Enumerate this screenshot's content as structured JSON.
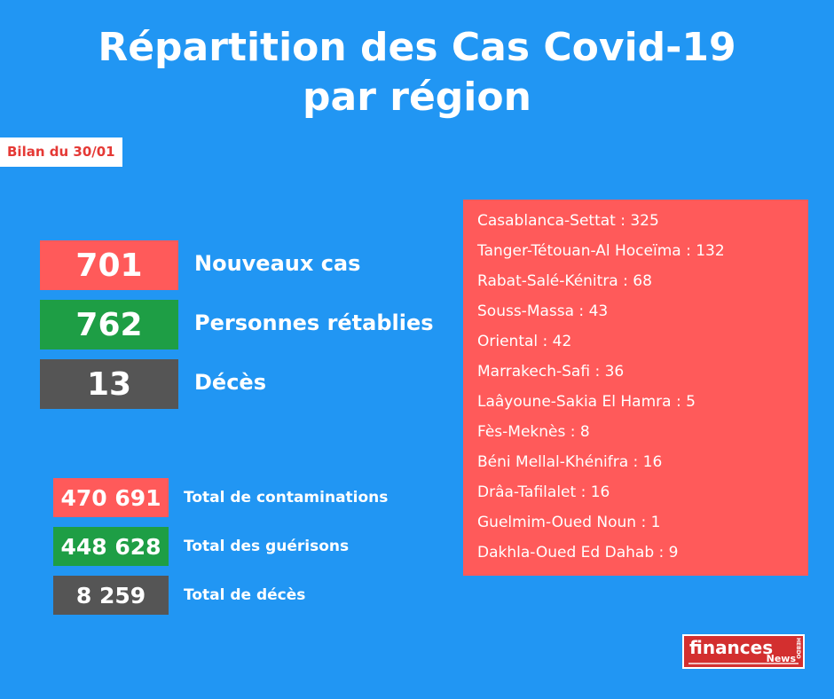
{
  "title_line1": "Répartition des Cas Covid-19",
  "title_line2": "par région",
  "date_label": "Bilan du 30/01",
  "daily": [
    {
      "value": "701",
      "label": "Nouveaux cas",
      "color": "#ff5a5a"
    },
    {
      "value": "762",
      "label": "Personnes rétablies",
      "color": "#1e9e45"
    },
    {
      "value": "13",
      "label": "Décès",
      "color": "#555555"
    }
  ],
  "totals": [
    {
      "value": "470 691",
      "label": "Total de contaminations",
      "color": "#ff5a5a"
    },
    {
      "value": "448 628",
      "label": "Total des guérisons",
      "color": "#1e9e45"
    },
    {
      "value": "8 259",
      "label": "Total de décès",
      "color": "#555555"
    }
  ],
  "regions": [
    "Casablanca-Settat : 325",
    "Tanger-Tétouan-Al Hoceïma : 132",
    "Rabat-Salé-Kénitra : 68",
    "Souss-Massa : 43",
    "Oriental : 42",
    "Marrakech-Safi : 36",
    "Laâyoune-Sakia El Hamra : 5",
    "Fès-Meknès : 8",
    "Béni Mellal-Khénifra : 16",
    "Drâa-Tafilalet : 16",
    "Guelmim-Oued Noun : 1",
    "Dakhla-Oued Ed Dahab : 9"
  ],
  "logo": {
    "word1": "finances",
    "word2": "News",
    "side": "HEBDO"
  },
  "background_color": "#2196f3"
}
